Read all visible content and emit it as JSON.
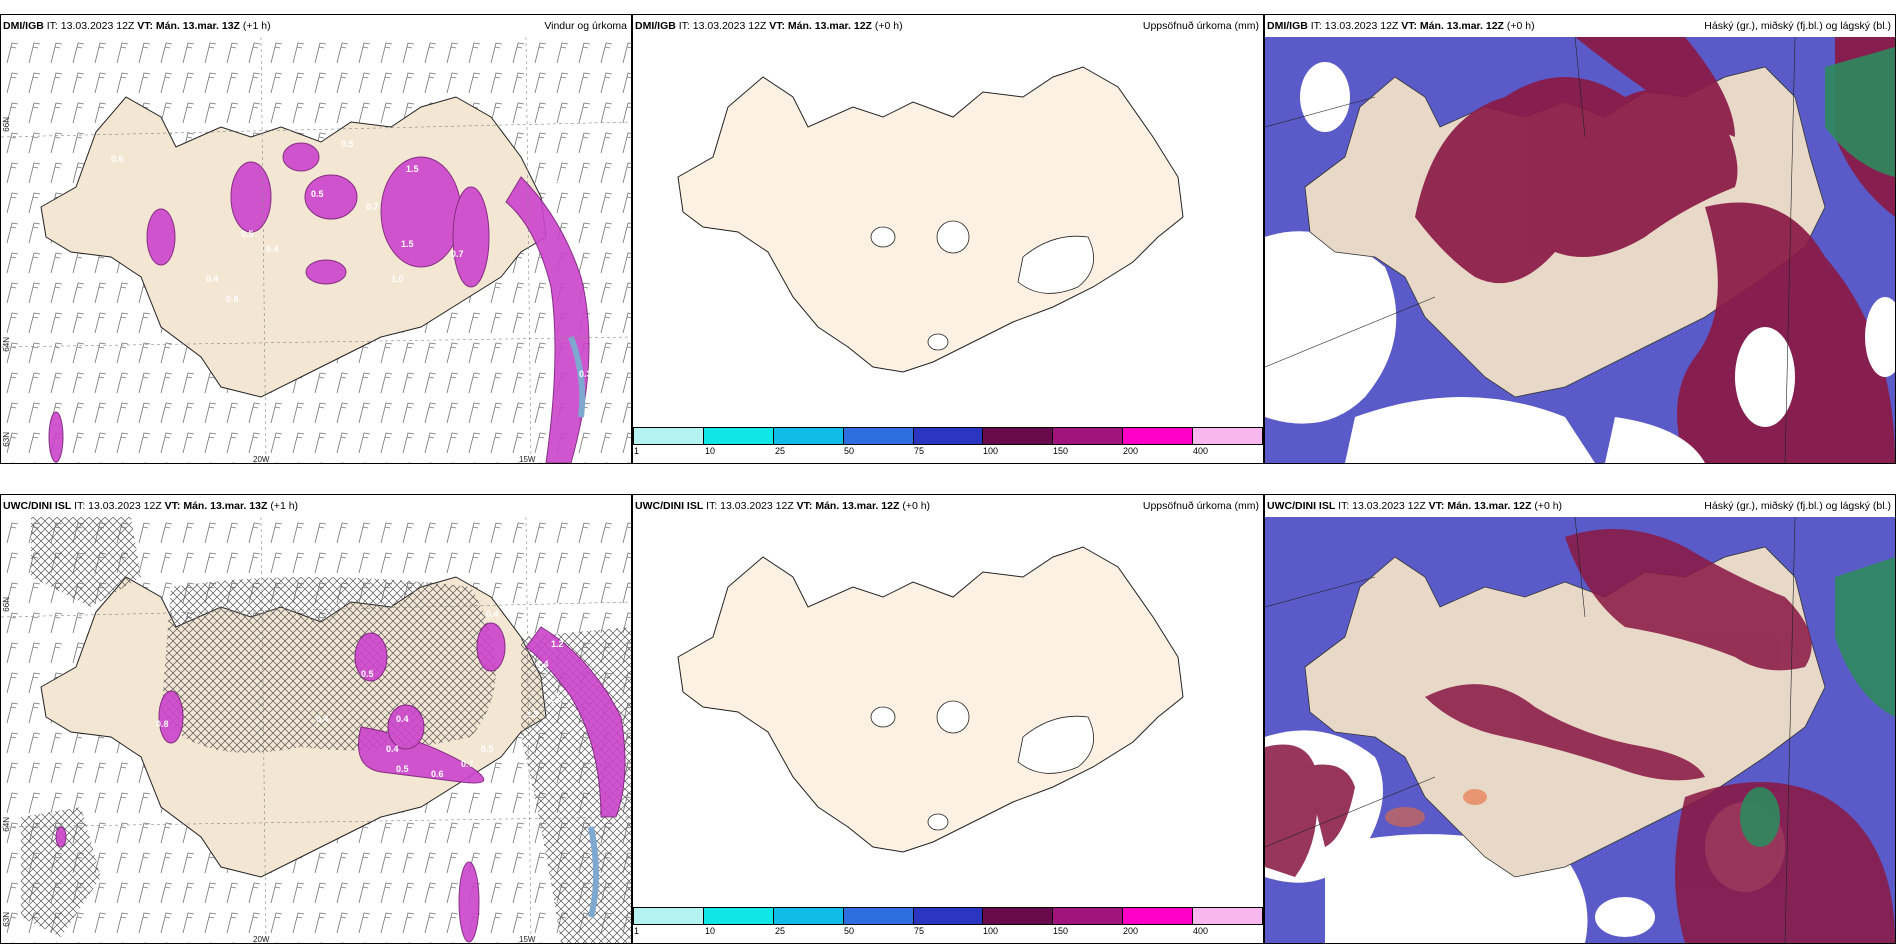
{
  "panels": {
    "p1": {
      "model": "DMI/IGB",
      "it": "IT: 13.03.2023 12Z",
      "vt": "VT: Mán. 13.mar. 13Z",
      "lead": "(+1 h)",
      "title": "Vindur og úrkoma"
    },
    "p2": {
      "model": "DMI/IGB",
      "it": "IT: 13.03.2023 12Z",
      "vt": "VT: Mán. 13.mar. 12Z",
      "lead": "(+0 h)",
      "title": "Uppsöfnuð úrkoma (mm)"
    },
    "p3": {
      "model": "DMI/IGB",
      "it": "IT: 13.03.2023 12Z",
      "vt": "VT: Mán. 13.mar. 12Z",
      "lead": "(+0 h)",
      "title": "Háský (gr.), miðský (fj.bl.) og lágský (bl.)"
    },
    "p4": {
      "model": "UWC/DINI ISL",
      "it": "IT: 13.03.2023 12Z",
      "vt": "VT: Mán. 13.mar. 13Z",
      "lead": "(+1 h)",
      "title": ""
    },
    "p5": {
      "model": "UWC/DINI ISL",
      "it": "IT: 13.03.2023 12Z",
      "vt": "VT: Mán. 13.mar. 12Z",
      "lead": "(+0 h)",
      "title": "Uppsöfnuð úrkoma (mm)"
    },
    "p6": {
      "model": "UWC/DINI ISL",
      "it": "IT: 13.03.2023 12Z",
      "vt": "VT: Mán. 13.mar. 12Z",
      "lead": "(+0 h)",
      "title": "Háský (gr.), miðský (fj.bl.) og lágský (bl.)"
    }
  },
  "axes": {
    "lon1": "20W",
    "lon2": "15W",
    "lat1": "66N",
    "lat2": "64N",
    "lat3": "63N"
  },
  "precip_labels_top": [
    "0.6",
    "0.5",
    "0.5",
    "0.4",
    "1.5",
    "0.7",
    "1.5",
    "1.0",
    "0.7",
    "0.8",
    "1.2",
    "0.4",
    "0.5",
    "0.3"
  ],
  "precip_labels_bottom": [
    "0.4",
    "0.8",
    "0.5",
    "0.4",
    "0.4",
    "0.5",
    "0.6",
    "0.7",
    "0.5",
    "0.4",
    "1.4",
    "1.9",
    "1.2",
    "1.3"
  ],
  "colorbar": {
    "labels": [
      "1",
      "10",
      "25",
      "50",
      "75",
      "100",
      "150",
      "200",
      "400"
    ],
    "colors": [
      "#b5f2f2",
      "#10e6e6",
      "#10bde8",
      "#2e6fe0",
      "#2b35bf",
      "#6a0a4d",
      "#a1147c",
      "#ff00c8",
      "#f6b8ee"
    ]
  },
  "colors": {
    "land": "#f3e6d3",
    "land2": "#fdf1e3",
    "precip": "#cc44cc",
    "precip_dark": "#7a1a7a",
    "cloud_high": "#5a5ac8",
    "cloud_mid": "#8a1a45",
    "cloud_low": "#2e8a5e"
  }
}
